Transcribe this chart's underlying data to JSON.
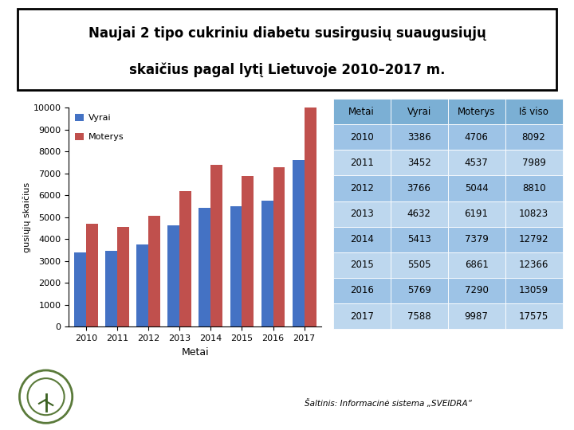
{
  "title_line1": "Naujai 2 tipo cukriniu diabetu susirgusių suaugusiųjų",
  "title_line2": "skaičius pagal lytį Lietuvoje 2010–2017 m.",
  "years": [
    2010,
    2011,
    2012,
    2013,
    2014,
    2015,
    2016,
    2017
  ],
  "vyrai": [
    3386,
    3452,
    3766,
    4632,
    5413,
    5505,
    5769,
    7588
  ],
  "moterys": [
    4706,
    4537,
    5044,
    6191,
    7379,
    6861,
    7290,
    9987
  ],
  "is_viso": [
    8092,
    7989,
    8810,
    10823,
    12792,
    12366,
    13059,
    17575
  ],
  "bar_color_vyrai": "#4472C4",
  "bar_color_moterys": "#C0504D",
  "ylabel": "gusiųjų skaičius",
  "xlabel": "Metai",
  "ylim": [
    0,
    10000
  ],
  "yticks": [
    0,
    1000,
    2000,
    3000,
    4000,
    5000,
    6000,
    7000,
    8000,
    9000,
    10000
  ],
  "legend_vyrai": "Vyrai",
  "legend_moterys": "Moterys",
  "table_header": [
    "Metai",
    "Vyrai",
    "Moterys",
    "Iš viso"
  ],
  "header_bg": "#7BAFD4",
  "row_bg_dark": "#9DC3E6",
  "row_bg_light": "#BDD7EE",
  "source_text": "Šaltinis: Informacinė sistema „SVEIDRA“",
  "background_color": "#FFFFFF"
}
